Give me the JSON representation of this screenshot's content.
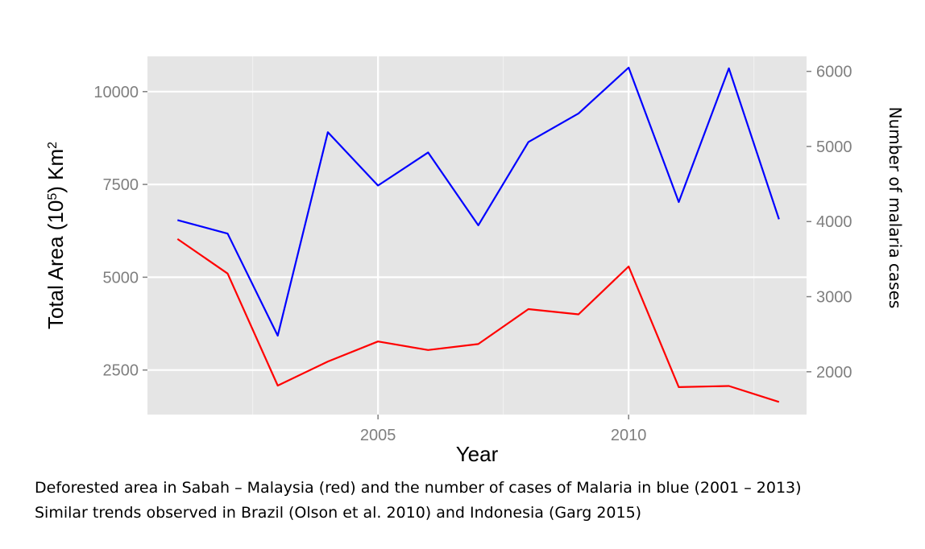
{
  "chart_data": {
    "type": "line",
    "x": [
      2001,
      2002,
      2003,
      2004,
      2005,
      2006,
      2007,
      2008,
      2009,
      2010,
      2011,
      2012,
      2013
    ],
    "xlabel": "Year",
    "xticks": [
      2005,
      2010
    ],
    "xlim": [
      2000.4,
      2013.55
    ],
    "ylabel_left": {
      "text": "Total Area (10",
      "sup1": "5",
      "mid": ") Km",
      "sup2": "2"
    },
    "ylabel_right": "Number of malaria cases",
    "ylim_left": [
      1300,
      10950
    ],
    "yticks_left": [
      2500,
      5000,
      7500,
      10000
    ],
    "ylim_right": [
      1430,
      6200
    ],
    "yticks_right": [
      2000,
      3000,
      4000,
      5000,
      6000
    ],
    "grid": true,
    "series": [
      {
        "axis": "left",
        "color": "#ff0000",
        "values": [
          6030,
          5100,
          2080,
          2730,
          3270,
          3040,
          3200,
          4140,
          4000,
          5290,
          2040,
          2070,
          1640
        ]
      },
      {
        "axis": "right",
        "color": "#0000ff",
        "values": [
          4020,
          3840,
          2480,
          5190,
          4480,
          4920,
          3950,
          5060,
          5440,
          6050,
          4260,
          6040,
          4030
        ]
      }
    ]
  },
  "caption": {
    "line1": "Deforested area in Sabah – Malaysia (red) and the number of cases of Malaria in blue (2001 – 2013)",
    "line2": "Similar trends observed in Brazil (Olson et al. 2010) and Indonesia (Garg 2015)"
  }
}
